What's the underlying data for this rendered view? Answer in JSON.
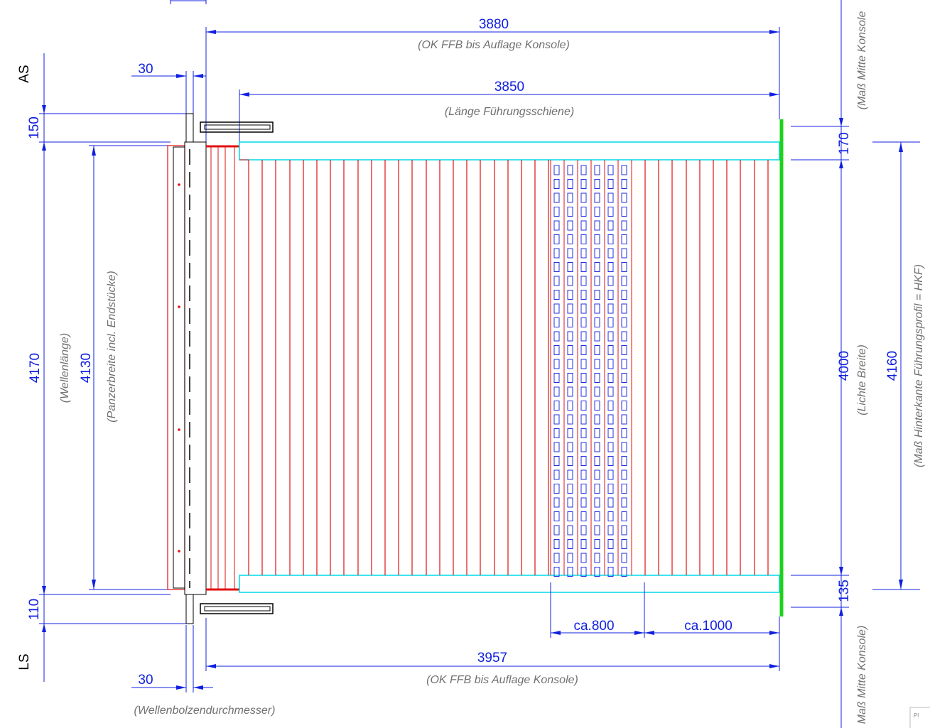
{
  "dimensions": {
    "top_3880": "3880",
    "top_3880_note": "(OK FFB bis Auflage Konsole)",
    "top_3850": "3850",
    "top_3850_note": "(Länge Führungsschiene)",
    "top_30": "30",
    "bottom_30": "30",
    "bottom_note_shaft": "(Wellenbolzendurchmesser)",
    "bottom_3957": "3957",
    "bottom_3957_note": "(OK FFB bis Auflage Konsole)",
    "ca800": "ca.800",
    "ca1000": "ca.1000",
    "left_150": "150",
    "left_110": "110",
    "left_4170": "4170",
    "left_4170_note": "(Wellenlänge)",
    "left_4130": "4130",
    "left_4130_note": "(Panzerbreite incl. Endstücke)",
    "right_170": "170",
    "right_135": "135",
    "right_4000": "4000",
    "right_4000_note": "(Lichte Breite)",
    "right_4160": "4160",
    "right_4160_note": "(Maß Hinterkante Führungsprofil = HKF)",
    "right_top_note": "(Maß Mitte Konsole",
    "right_bottom_note": "Maß Mitte Konsole)"
  },
  "sides": {
    "as": "AS",
    "ls": "LS"
  },
  "corner_stamp": "Pl"
}
